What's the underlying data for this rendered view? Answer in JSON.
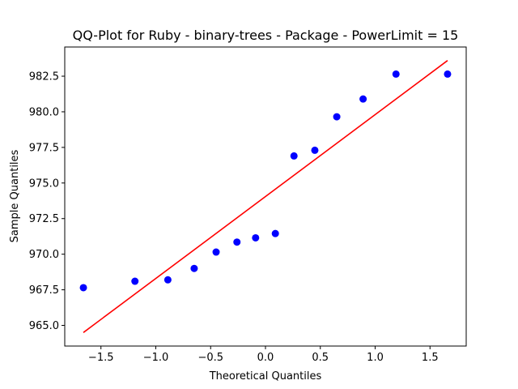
{
  "chart_data": {
    "type": "scatter",
    "title": "QQ-Plot for Ruby - binary-trees - Package - PowerLimit = 15",
    "xlabel": "Theoretical Quantiles",
    "ylabel": "Sample Quantiles",
    "xlim": [
      -1.83,
      1.83
    ],
    "ylim": [
      963.55,
      984.55
    ],
    "xticks": [
      -1.5,
      -1.0,
      -0.5,
      0.0,
      0.5,
      1.0,
      1.5
    ],
    "xtick_labels": [
      "−1.5",
      "−1.0",
      "−0.5",
      "0.0",
      "0.5",
      "1.0",
      "1.5"
    ],
    "yticks": [
      965.0,
      967.5,
      970.0,
      972.5,
      975.0,
      977.5,
      980.0,
      982.5
    ],
    "ytick_labels": [
      "965.0",
      "967.5",
      "970.0",
      "972.5",
      "975.0",
      "977.5",
      "980.0",
      "982.5"
    ],
    "grid": false,
    "points": {
      "color": "#0000ff",
      "x": [
        -1.66,
        -1.19,
        -0.89,
        -0.65,
        -0.45,
        -0.26,
        -0.09,
        0.09,
        0.26,
        0.45,
        0.65,
        0.89,
        1.19,
        1.66
      ],
      "y": [
        967.65,
        968.1,
        968.2,
        969.0,
        970.15,
        970.85,
        971.15,
        971.45,
        976.9,
        977.3,
        979.65,
        980.9,
        982.65,
        982.65
      ]
    },
    "fit_line": {
      "color": "#ff0000",
      "x": [
        -1.66,
        1.66
      ],
      "y": [
        964.5,
        983.6
      ]
    }
  }
}
